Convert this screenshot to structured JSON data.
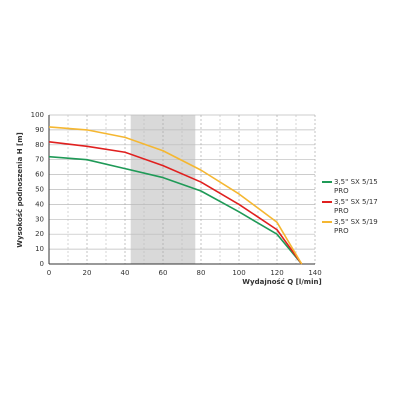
{
  "chart_data": {
    "type": "line",
    "y_label": "Wysokość podnoszenia H [m]",
    "x_label": "Wydajność Q [l/min]",
    "x": [
      0,
      20,
      40,
      60,
      80,
      100,
      120,
      133
    ],
    "series": [
      {
        "name": "3,5\" SX 5/15 PRO",
        "color": "#1f9a57",
        "values": [
          72,
          70,
          64,
          58,
          49,
          35,
          20,
          0
        ]
      },
      {
        "name": "3,5\" SX 5/17 PRO",
        "color": "#e0201f",
        "values": [
          82,
          79,
          75,
          66,
          55,
          40,
          23,
          0
        ]
      },
      {
        "name": "3,5\" SX 5/19 PRO",
        "color": "#f5b731",
        "values": [
          92,
          90,
          85,
          76,
          63,
          47,
          28,
          0
        ]
      }
    ],
    "highlight_range": [
      43,
      77
    ],
    "xlim": [
      0,
      140
    ],
    "ylim": [
      0,
      100
    ],
    "xticks": [
      0,
      20,
      40,
      60,
      80,
      100,
      120,
      140
    ],
    "x_minor_ticks": [
      10,
      30,
      50,
      70,
      90,
      110,
      130
    ],
    "yticks": [
      0,
      10,
      20,
      30,
      40,
      50,
      60,
      70,
      80,
      90,
      100
    ],
    "grid": true,
    "legend": "right"
  }
}
